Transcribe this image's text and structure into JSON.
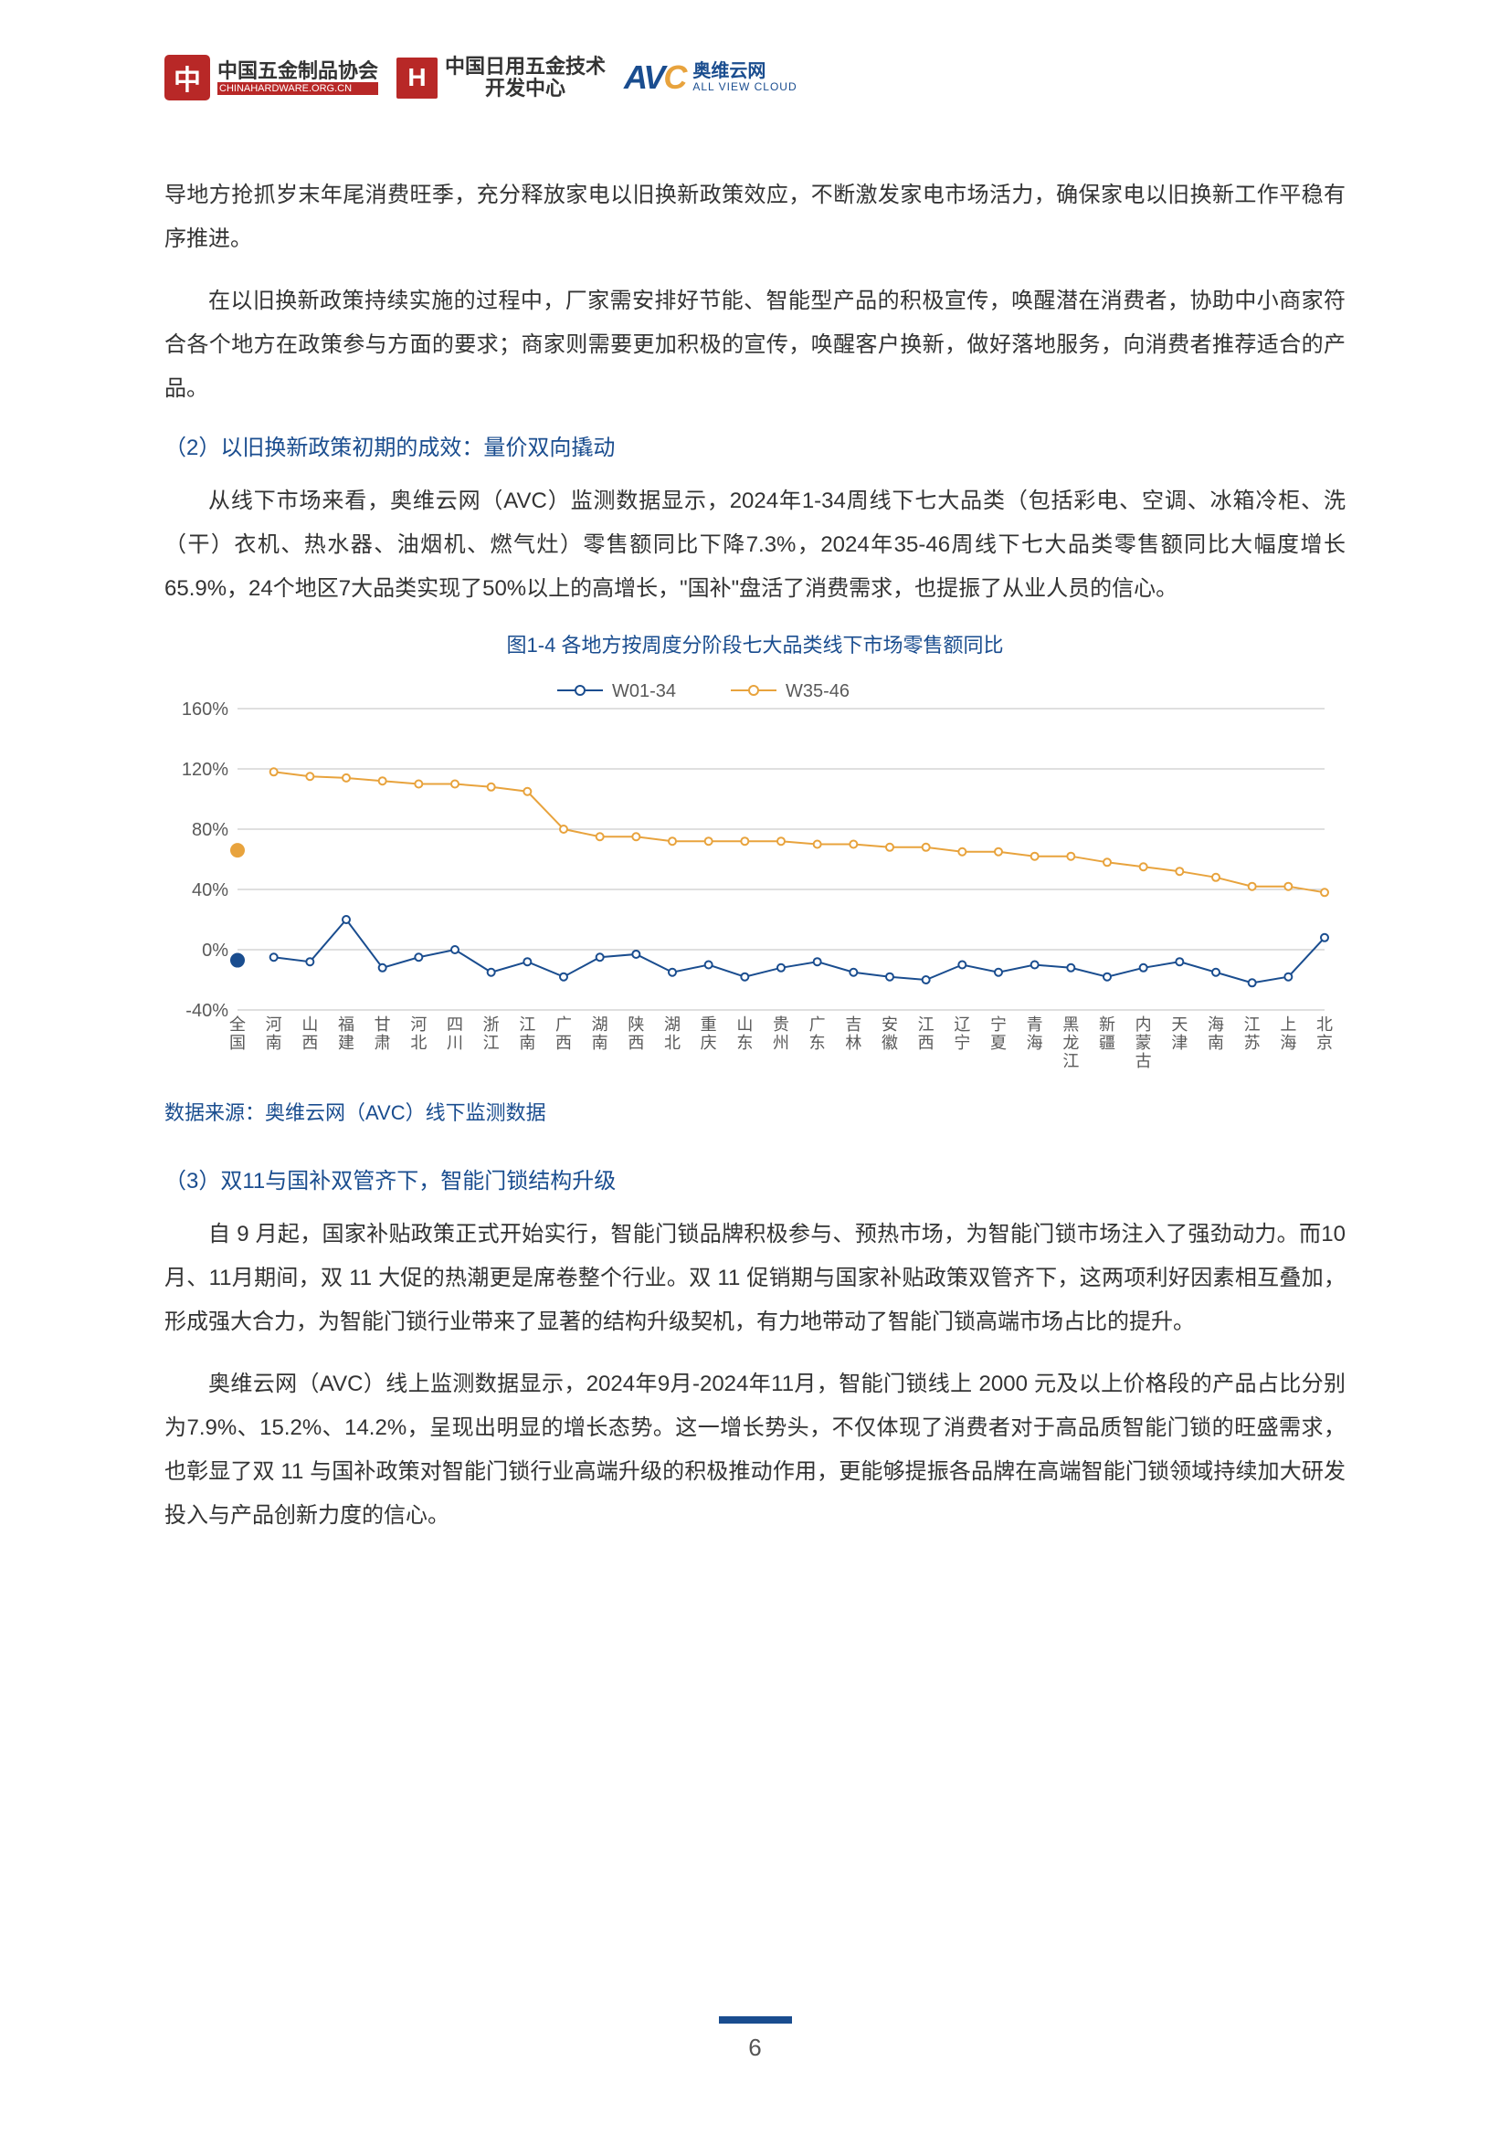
{
  "header": {
    "org1_name": "中国五金制品协会",
    "org1_sub": "CHINAHARDWARE.ORG.CN",
    "org2_name_l1": "中国日用五金技术",
    "org2_name_l2": "开发中心",
    "avc_cn": "奥维云网",
    "avc_en": "ALL VIEW CLOUD"
  },
  "para1": "导地方抢抓岁末年尾消费旺季，充分释放家电以旧换新政策效应，不断激发家电市场活力，确保家电以旧换新工作平稳有序推进。",
  "para2": "在以旧换新政策持续实施的过程中，厂家需安排好节能、智能型产品的积极宣传，唤醒潜在消费者，协助中小商家符合各个地方在政策参与方面的要求；商家则需要更加积极的宣传，唤醒客户换新，做好落地服务，向消费者推荐适合的产品。",
  "head2": "（2）以旧换新政策初期的成效：量价双向撬动",
  "para3": "从线下市场来看，奥维云网（AVC）监测数据显示，2024年1-34周线下七大品类（包括彩电、空调、冰箱冷柜、洗（干）衣机、热水器、油烟机、燃气灶）零售额同比下降7.3%，2024年35-46周线下七大品类零售额同比大幅度增长65.9%，24个地区7大品类实现了50%以上的高增长，\"国补\"盘活了消费需求，也提振了从业人员的信心。",
  "chart": {
    "title": "图1-4 各地方按周度分阶段七大品类线下市场零售额同比",
    "legend1": "W01-34",
    "legend2": "W35-46",
    "color1": "#1a4d8f",
    "color2": "#e8a33d",
    "bg": "#ffffff",
    "grid_color": "#bfbfbf",
    "axis_color": "#7f7f7f",
    "text_color": "#595959",
    "ylabels": [
      "-40%",
      "0%",
      "40%",
      "80%",
      "120%",
      "160%"
    ],
    "ylim_min": -40,
    "ylim_max": 160,
    "categories": [
      "全国",
      "河南",
      "山西",
      "福建",
      "甘肃",
      "河北",
      "四川",
      "浙江",
      "江南",
      "广西",
      "湖南",
      "陕西",
      "湖北",
      "重庆",
      "山东",
      "贵州",
      "广东",
      "吉林",
      "安徽",
      "江西",
      "辽宁",
      "宁夏",
      "青海",
      "黑龙江",
      "新疆",
      "内蒙古",
      "天津",
      "海南",
      "江苏",
      "上海",
      "北京"
    ],
    "series1": [
      -7,
      -5,
      -8,
      20,
      -12,
      -5,
      0,
      -15,
      -8,
      -18,
      -5,
      -3,
      -15,
      -10,
      -18,
      -12,
      -8,
      -15,
      -18,
      -20,
      -10,
      -15,
      -10,
      -12,
      -18,
      -12,
      -8,
      -15,
      -22,
      -18,
      8
    ],
    "series2": [
      66,
      118,
      115,
      114,
      112,
      110,
      110,
      108,
      105,
      80,
      75,
      75,
      72,
      72,
      72,
      72,
      70,
      70,
      68,
      68,
      65,
      65,
      62,
      62,
      58,
      55,
      52,
      48,
      42,
      42,
      38
    ],
    "highlight1": {
      "idx": 0,
      "color": "#1a4d8f"
    },
    "highlight2": {
      "idx": 0,
      "color": "#e8a33d"
    },
    "line_width": 2,
    "marker_size": 4
  },
  "data_source": "数据来源：奥维云网（AVC）线下监测数据",
  "head3": "（3）双11与国补双管齐下，智能门锁结构升级",
  "para4": "自 9 月起，国家补贴政策正式开始实行，智能门锁品牌积极参与、预热市场，为智能门锁市场注入了强劲动力。而10月、11月期间，双 11 大促的热潮更是席卷整个行业。双 11 促销期与国家补贴政策双管齐下，这两项利好因素相互叠加，形成强大合力，为智能门锁行业带来了显著的结构升级契机，有力地带动了智能门锁高端市场占比的提升。",
  "para5": "奥维云网（AVC）线上监测数据显示，2024年9月-2024年11月，智能门锁线上 2000 元及以上价格段的产品占比分别为7.9%、15.2%、14.2%，呈现出明显的增长态势。这一增长势头，不仅体现了消费者对于高品质智能门锁的旺盛需求，也彰显了双 11 与国补政策对智能门锁行业高端升级的积极推动作用，更能够提振各品牌在高端智能门锁领域持续加大研发投入与产品创新力度的信心。",
  "page_number": "6"
}
